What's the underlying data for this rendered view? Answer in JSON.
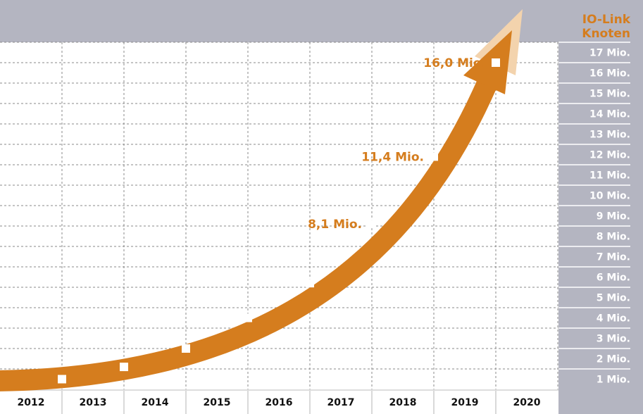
{
  "chart_data": {
    "type": "line",
    "title": "",
    "ylabel": "IO-Link Knoten",
    "ylabel_lines": [
      "IO-Link",
      "Knoten"
    ],
    "categories": [
      "2012",
      "2013",
      "2014",
      "2015",
      "2016",
      "2017",
      "2018",
      "2019",
      "2020"
    ],
    "y_tick_labels": [
      "1 Mio.",
      "2 Mio.",
      "3 Mio.",
      "4 Mio.",
      "5 Mio.",
      "6 Mio.",
      "7 Mio.",
      "8 Mio.",
      "9 Mio.",
      "10 Mio.",
      "11 Mio.",
      "12 Mio.",
      "13 Mio.",
      "14 Mio.",
      "15 Mio.",
      "16 Mio.",
      "17 Mio."
    ],
    "ylim": [
      0,
      17
    ],
    "grid": true,
    "y_axis_position": "right",
    "points": [
      {
        "x": "end 2012",
        "y": 0.5,
        "label": ""
      },
      {
        "x": "end 2013",
        "y": 1.1,
        "label": ""
      },
      {
        "x": "end 2014",
        "y": 2.0,
        "label": ""
      },
      {
        "x": "end 2015",
        "y": 3.5,
        "label": ""
      },
      {
        "x": "end 2016",
        "y": 5.2,
        "label": ""
      },
      {
        "x": "end 2017",
        "y": 8.1,
        "label": "8,1 Mio."
      },
      {
        "x": "end 2018",
        "y": 11.4,
        "label": "11,4 Mio."
      },
      {
        "x": "end 2019",
        "y": 16.0,
        "label": "16,0 Mio."
      }
    ],
    "colors": {
      "accent": "#d57d1e",
      "accent_light": "#f3d3ad",
      "band": "#b4b5c1",
      "marker": "#ffffff"
    }
  }
}
